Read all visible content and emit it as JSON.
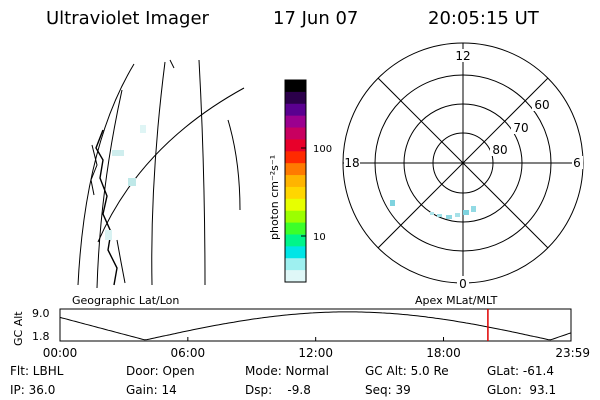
{
  "header": {
    "instrument": "Ultraviolet Imager",
    "date": "17 Jun 07",
    "time": "20:05:15 UT"
  },
  "geo_panel": {
    "label": "Geographic Lat/Lon"
  },
  "colorbar": {
    "unit_label": "photon cm⁻²s⁻¹",
    "ticks": [
      "100",
      "10"
    ],
    "colors": [
      "#000000",
      "#2b004a",
      "#5a0090",
      "#9b008f",
      "#c80060",
      "#e8002a",
      "#ff2a00",
      "#ff7a00",
      "#ffb400",
      "#ffd600",
      "#e7ff00",
      "#9bff00",
      "#3cff2a",
      "#00f58a",
      "#00e5e6",
      "#9ef0f0",
      "#dff7f7"
    ]
  },
  "polar_panel": {
    "label": "Apex MLat/MLT",
    "mlt_labels": {
      "top": "12",
      "right": "6",
      "bottom": "0",
      "left": "18"
    },
    "lat_labels": [
      "60",
      "70",
      "80"
    ]
  },
  "altitude_plot": {
    "ylabel": "GC Alt",
    "ytick_top": "9.0",
    "ytick_bottom": "1.8",
    "xticks": [
      "00:00",
      "06:00",
      "12:00",
      "18:00",
      "23:59"
    ],
    "curve_color": "#000000",
    "marker_color": "#e00000",
    "marker_time": "20:05"
  },
  "status": {
    "flt": "Flt: LBHL",
    "ip": "IP: 36.0",
    "door": "Door: Open",
    "gain": "Gain: 14",
    "mode": "Mode: Normal",
    "dsp": "Dsp:    -9.8",
    "gc_alt": "GC Alt: 5.0 Re",
    "seq": "Seq: 39",
    "glat": "GLat: -61.4",
    "glon": "GLon:  93.1"
  }
}
